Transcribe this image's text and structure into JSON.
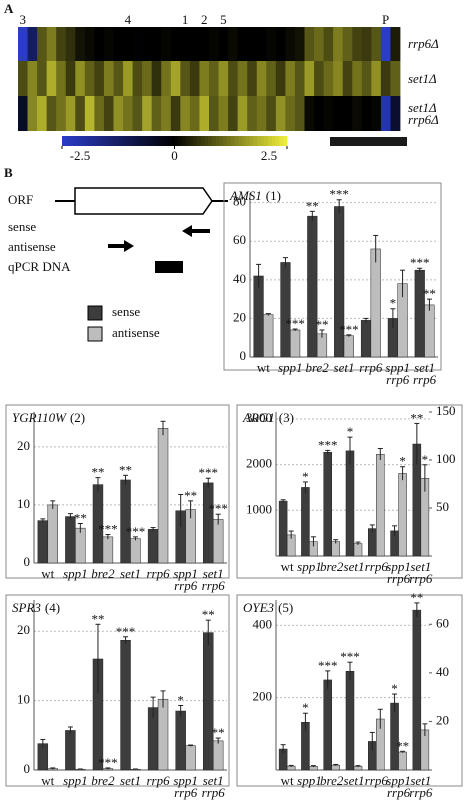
{
  "panel_a": {
    "label": "A",
    "heatmap": {
      "columns": [
        "3",
        null,
        null,
        null,
        null,
        null,
        null,
        null,
        null,
        null,
        null,
        "4",
        null,
        null,
        null,
        null,
        null,
        "1",
        null,
        "2",
        null,
        "5",
        null,
        null,
        null,
        null,
        null,
        null,
        null,
        null,
        null,
        null,
        null,
        null,
        null,
        null,
        null,
        null,
        "P",
        null
      ],
      "rows": [
        {
          "label": "rrp6Δ",
          "values": [
            -2.5,
            -1.2,
            0.9,
            1.3,
            0.7,
            0.5,
            0.2,
            0.1,
            0,
            0.05,
            0,
            0,
            -0.05,
            0,
            0,
            0.05,
            0,
            0,
            0,
            0,
            0.05,
            0,
            0.1,
            0,
            0,
            0,
            0.05,
            0,
            0.1,
            0.2,
            0.9,
            1.1,
            0.8,
            1.3,
            1,
            0.7,
            0.6,
            0.9,
            -2.5,
            0.3
          ]
        },
        {
          "label": "set1Δ",
          "values": [
            0.8,
            1.4,
            0.9,
            1.8,
            1.2,
            0.6,
            1.5,
            1.0,
            0.7,
            1.3,
            0.9,
            1.6,
            0.8,
            1.1,
            0.5,
            1.2,
            1.7,
            0.9,
            0.6,
            1.3,
            1.0,
            1.5,
            0.8,
            1.2,
            0.7,
            1.4,
            1.0,
            0.6,
            1.3,
            0.9,
            1.6,
            0.8,
            1.1,
            1.4,
            0.7,
            1.2,
            0.9,
            1.5,
            0.6,
            1.0
          ]
        },
        {
          "label": "set1Δ\nrrp6Δ",
          "values": [
            -0.5,
            1.4,
            1.8,
            0.9,
            1.2,
            1.6,
            0.8,
            1.9,
            1.1,
            0.7,
            1.5,
            1.2,
            0.9,
            1.7,
            1.0,
            1.3,
            0.6,
            1.4,
            1.1,
            1.8,
            0.9,
            1.3,
            0.7,
            1.6,
            1.0,
            1.2,
            0.8,
            1.5,
            1.1,
            0.9,
            0.1,
            0,
            0.05,
            0,
            0,
            0.1,
            0,
            0.05,
            -2.2,
            -0.6
          ]
        }
      ],
      "colorbar": {
        "range": [
          -2.5,
          2.5
        ],
        "ticks": [
          -2.5,
          0,
          2.5
        ],
        "colors": [
          "#2a3cc8",
          "#000000",
          "#f0f03c"
        ]
      }
    }
  },
  "panel_b": {
    "label": "B",
    "diagram": {
      "orf": "ORF",
      "sense": "sense",
      "antisense": "antisense",
      "qpcr": "qPCR DNA"
    }
  },
  "chart_data": [
    {
      "type": "bar",
      "title": "AMS1",
      "title_suffix": "(1)",
      "grid": true,
      "categories": [
        "wt",
        "spp1",
        "bre2",
        "set1",
        "rrp6",
        "spp1\nrrp6",
        "set1\nrrp6"
      ],
      "ylim": [
        0,
        85
      ],
      "yticks": [
        0,
        20,
        40,
        60,
        80
      ],
      "series": [
        {
          "name": "sense",
          "color": "#3d3d3d",
          "values": [
            42,
            49,
            73,
            78,
            19,
            20,
            45
          ],
          "errors": [
            6,
            2.5,
            2.5,
            3.5,
            1,
            5,
            1
          ],
          "significance": [
            null,
            null,
            "**",
            "***",
            null,
            "*",
            "***"
          ]
        },
        {
          "name": "antisense",
          "color": "#bdbdbd",
          "values": [
            22,
            14,
            12,
            11,
            56,
            38,
            27
          ],
          "errors": [
            0.5,
            0.5,
            2,
            0.5,
            7,
            7,
            3
          ],
          "significance": [
            null,
            "***",
            "**",
            "***",
            null,
            null,
            "**"
          ]
        }
      ]
    },
    {
      "type": "bar",
      "title": "YGR110W",
      "title_suffix": "(2)",
      "grid": true,
      "categories": [
        "wt",
        "spp1",
        "bre2",
        "set1",
        "rrp6",
        "spp1\nrrp6",
        "set1\nrrp6"
      ],
      "ylim": [
        0,
        26
      ],
      "yticks": [
        0,
        10,
        20
      ],
      "series": [
        {
          "color": "#3d3d3d",
          "values": [
            7.3,
            8,
            13.5,
            14.3,
            5.8,
            9,
            13.8
          ],
          "errors": [
            0.3,
            0.5,
            1.2,
            0.8,
            0.3,
            2.8,
            0.8
          ],
          "significance": [
            null,
            null,
            "**",
            "**",
            null,
            null,
            "***"
          ]
        },
        {
          "color": "#bdbdbd",
          "values": [
            10,
            6,
            4.5,
            4.2,
            23.2,
            9.2,
            7.5
          ],
          "errors": [
            0.7,
            0.8,
            0.4,
            0.3,
            1.2,
            1.5,
            0.9
          ],
          "significance": [
            null,
            "**",
            "***",
            "***",
            null,
            "**",
            "***"
          ]
        }
      ]
    },
    {
      "type": "bar",
      "title": "ARG1",
      "title_suffix": "(3)",
      "grid": true,
      "categories": [
        "wt",
        "spp1",
        "bre2",
        "set1",
        "rrp6",
        "spp1\nrrp6",
        "set1\nrrp6"
      ],
      "ylim": [
        0,
        3150
      ],
      "yticks": [
        1000,
        2000,
        3000
      ],
      "y2lim": [
        0,
        150
      ],
      "y2ticks": [
        50,
        100,
        150
      ],
      "series": [
        {
          "color": "#3d3d3d",
          "values": [
            1200,
            1500,
            2270,
            2300,
            600,
            550,
            2450
          ],
          "errors": [
            30,
            120,
            40,
            300,
            80,
            110,
            450
          ],
          "significance": [
            null,
            "*",
            "***",
            "*",
            null,
            null,
            "**"
          ]
        },
        {
          "color": "#bdbdbd",
          "axis": "y2",
          "values": [
            22,
            15,
            15,
            13,
            106,
            86,
            81
          ],
          "errors": [
            4,
            5,
            2,
            1.5,
            6,
            7,
            14
          ],
          "significance": [
            null,
            null,
            null,
            null,
            null,
            "*",
            "*"
          ]
        }
      ]
    },
    {
      "type": "bar",
      "title": "SPR3",
      "title_suffix": "(4)",
      "grid": true,
      "categories": [
        "wt",
        "spp1",
        "bre2",
        "set1",
        "rrp6",
        "spp1\nrrp6",
        "set1\nrrp6"
      ],
      "ylim": [
        0,
        24.5
      ],
      "yticks": [
        0,
        10,
        20
      ],
      "series": [
        {
          "color": "#3d3d3d",
          "values": [
            3.8,
            5.7,
            16,
            18.7,
            9,
            8.5,
            19.8
          ],
          "errors": [
            0.6,
            0.5,
            5,
            0.5,
            1.5,
            0.8,
            1.8
          ],
          "significance": [
            null,
            null,
            "**",
            "***",
            null,
            "*",
            "**"
          ]
        },
        {
          "color": "#bdbdbd",
          "values": [
            0.2,
            0.1,
            0.2,
            0.1,
            10.2,
            3.5,
            4.2
          ],
          "errors": [
            0.1,
            0.05,
            0.1,
            0.05,
            1.2,
            0.1,
            0.4
          ],
          "significance": [
            null,
            null,
            "***",
            null,
            null,
            null,
            "**"
          ]
        }
      ]
    },
    {
      "type": "bar",
      "title": "OYE3",
      "title_suffix": "(5)",
      "grid": true,
      "categories": [
        "wt",
        "spp1",
        "bre2",
        "set1",
        "rrp6",
        "spp1\nrrp6",
        "set1\nrrp6"
      ],
      "ylim": [
        0,
        470
      ],
      "yticks": [
        200,
        400
      ],
      "y2lim": [
        0,
        70
      ],
      "y2ticks": [
        20,
        40,
        60
      ],
      "series": [
        {
          "color": "#3d3d3d",
          "values": [
            58,
            132,
            249,
            273,
            79,
            185,
            442
          ],
          "errors": [
            12,
            25,
            25,
            25,
            25,
            25,
            20
          ],
          "significance": [
            null,
            "*",
            "***",
            "***",
            null,
            "*",
            "**"
          ]
        },
        {
          "color": "#bdbdbd",
          "axis": "y2",
          "values": [
            1.6,
            1.5,
            2,
            1.5,
            21,
            7.4,
            16.5
          ],
          "errors": [
            0.3,
            0.3,
            0.3,
            0.3,
            4,
            0.3,
            2.5
          ],
          "significance": [
            null,
            null,
            null,
            null,
            null,
            "**",
            null
          ]
        }
      ]
    }
  ]
}
